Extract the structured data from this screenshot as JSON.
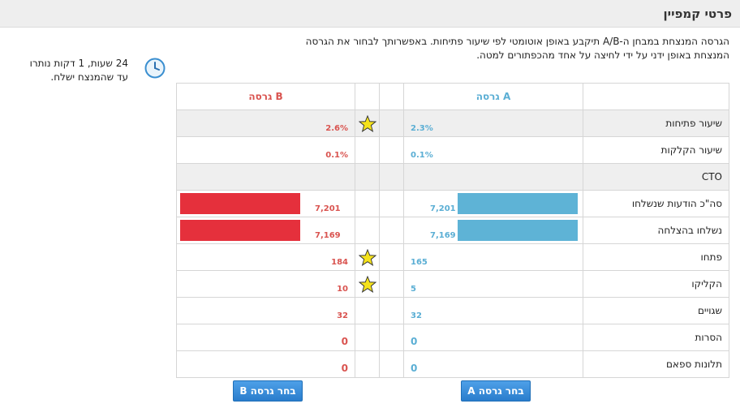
{
  "header": {
    "title": "פרטי קמפיין"
  },
  "description": {
    "line1": "הגרסה המנצחת במבחן ה-A/B תיקבע באופן אוטומטי לפי שיעור פתיחות. באפשרותך לבחור את הגרסה",
    "line2": "המנצחת באופן ידני על ידי לחיצה על אחד מהכפתורים למטה."
  },
  "timer": {
    "line1": "24 שעות, 1 דקות נותרו",
    "line2": "עד שהמנצח ישלח."
  },
  "table": {
    "header_a": "גרסה A",
    "header_b": "גרסה B",
    "rows": [
      {
        "label": "שיעור פתיחות",
        "a": "2.3%",
        "b": "2.6%",
        "star_b": true
      },
      {
        "label": "שיעור הקלקות",
        "a": "0.1%",
        "b": "0.1%",
        "star_b": false
      },
      {
        "label": "CTO",
        "a": "",
        "b": "",
        "star_b": false
      },
      {
        "label": "סה\"כ הודעות שנשלחו",
        "a": "7,201",
        "b": "7,201",
        "star_b": false,
        "bar_a": 1.0,
        "bar_b": 1.0
      },
      {
        "label": "נשלחו בהצלחה",
        "a": "7,169",
        "b": "7,169",
        "star_b": false,
        "bar_a": 1.0,
        "bar_b": 1.0
      },
      {
        "label": "פתחו",
        "a": "165",
        "b": "184",
        "star_b": true
      },
      {
        "label": "הקליקו",
        "a": "5",
        "b": "10",
        "star_b": true
      },
      {
        "label": "שגויים",
        "a": "32",
        "b": "32",
        "star_b": false
      },
      {
        "label": "הסרות",
        "a": "0",
        "b": "0",
        "star_b": false
      },
      {
        "label": "תלונות ספאם",
        "a": "0",
        "b": "0",
        "star_b": false
      }
    ]
  },
  "buttons": {
    "choose_b": "בחר גרסה B",
    "choose_a": "בחר גרסה A"
  },
  "colors": {
    "version_a": "#5aaed4",
    "version_b": "#d9534f",
    "bar_a": "#5eb3d6",
    "bar_b": "#e5303c",
    "star": "#f5e21b"
  },
  "icons": {
    "clock": "clock-icon",
    "star": "star-icon"
  }
}
